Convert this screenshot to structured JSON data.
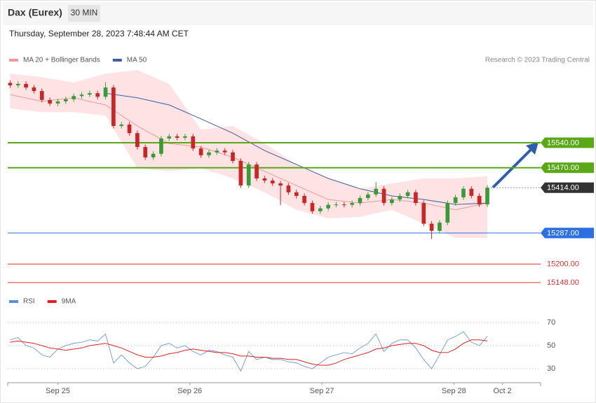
{
  "header": {
    "instrument": "Dax (Eurex)",
    "timeframe": "30 MIN",
    "timestamp": "Thursday, September 28, 2023 7:48:44 AM CET"
  },
  "chart_data": [
    {
      "type": "candlestick",
      "x": [
        0,
        1,
        2,
        3,
        4,
        5,
        6,
        7,
        8,
        9,
        10,
        11,
        12,
        13,
        14,
        15,
        16,
        17,
        18,
        19,
        20,
        21,
        22,
        23,
        24,
        25,
        26,
        27,
        28,
        29,
        30,
        31,
        32,
        33,
        34,
        35,
        36,
        37,
        38,
        39,
        40,
        41,
        42,
        43,
        44,
        45,
        46,
        47,
        48,
        49,
        50,
        51,
        52,
        53,
        54,
        55,
        56,
        57,
        58,
        59,
        60
      ],
      "open": [
        15708,
        15701,
        15705,
        15695,
        15685,
        15660,
        15650,
        15656,
        15662,
        15671,
        15675,
        15679,
        15669,
        15695,
        15587,
        15591,
        15567,
        15528,
        15499,
        15509,
        15552,
        15558,
        15554,
        15558,
        15524,
        15505,
        15513,
        15518,
        15513,
        15489,
        15420,
        15479,
        15440,
        15434,
        15426,
        15420,
        15401,
        15391,
        15371,
        15348,
        15356,
        15366,
        15367,
        15366,
        15371,
        15385,
        15395,
        15411,
        15371,
        15381,
        15391,
        15401,
        15371,
        15313,
        15293,
        15316,
        15371,
        15387,
        15411,
        15391,
        15367
      ],
      "high": [
        15715,
        15712,
        15712,
        15702,
        15692,
        15667,
        15663,
        15669,
        15678,
        15682,
        15686,
        15686,
        15710,
        15702,
        15598,
        15598,
        15574,
        15535,
        15516,
        15559,
        15565,
        15565,
        15565,
        15565,
        15531,
        15520,
        15525,
        15525,
        15520,
        15496,
        15486,
        15486,
        15447,
        15441,
        15433,
        15427,
        15408,
        15398,
        15378,
        15363,
        15373,
        15374,
        15374,
        15378,
        15392,
        15402,
        15430,
        15418,
        15388,
        15398,
        15408,
        15408,
        15378,
        15320,
        15323,
        15378,
        15394,
        15418,
        15418,
        15398,
        15421
      ],
      "low": [
        15694,
        15694,
        15688,
        15678,
        15653,
        15643,
        15643,
        15649,
        15655,
        15664,
        15668,
        15662,
        15662,
        15580,
        15580,
        15560,
        15521,
        15492,
        15492,
        15502,
        15545,
        15547,
        15547,
        15517,
        15498,
        15498,
        15506,
        15506,
        15482,
        15413,
        15413,
        15433,
        15427,
        15419,
        15365,
        15394,
        15384,
        15364,
        15341,
        15341,
        15349,
        15359,
        15359,
        15359,
        15364,
        15378,
        15388,
        15364,
        15364,
        15374,
        15384,
        15364,
        15306,
        15270,
        15286,
        15309,
        15364,
        15380,
        15384,
        15360,
        15360
      ],
      "close": [
        15701,
        15705,
        15695,
        15685,
        15660,
        15650,
        15656,
        15662,
        15671,
        15675,
        15679,
        15669,
        15695,
        15587,
        15591,
        15567,
        15528,
        15499,
        15509,
        15552,
        15558,
        15554,
        15558,
        15524,
        15505,
        15513,
        15518,
        15513,
        15489,
        15420,
        15479,
        15440,
        15434,
        15426,
        15420,
        15401,
        15391,
        15371,
        15348,
        15356,
        15366,
        15367,
        15366,
        15371,
        15385,
        15395,
        15411,
        15371,
        15381,
        15391,
        15401,
        15371,
        15313,
        15293,
        15316,
        15371,
        15387,
        15411,
        15391,
        15367,
        15414
      ],
      "up_color": "#3a9a3a",
      "down_color": "#c62828",
      "series": [
        {
          "name": "MA 20 + Bollinger Bands",
          "color": "#f29a9a",
          "band_color": "#fde3e3",
          "x": [
            0,
            4,
            8,
            12,
            16,
            20,
            24,
            28,
            32,
            36,
            40,
            44,
            48,
            52,
            56,
            60
          ],
          "values": [
            15675,
            15656,
            15666,
            15646,
            15587,
            15538,
            15528,
            15499,
            15460,
            15420,
            15381,
            15371,
            15381,
            15371,
            15352,
            15371
          ],
          "upper": [
            15734,
            15724,
            15709,
            15734,
            15744,
            15705,
            15577,
            15587,
            15538,
            15479,
            15440,
            15411,
            15426,
            15440,
            15440,
            15446
          ],
          "lower": [
            15636,
            15626,
            15626,
            15616,
            15469,
            15460,
            15469,
            15440,
            15401,
            15352,
            15328,
            15332,
            15352,
            15313,
            15273,
            15273
          ]
        },
        {
          "name": "MA 50",
          "color": "#3f5f9f",
          "x": [
            0,
            4,
            8,
            12,
            16,
            20,
            24,
            28,
            32,
            36,
            40,
            44,
            48,
            52,
            56,
            60
          ],
          "values": [
            null,
            null,
            null,
            15679,
            15666,
            15646,
            15607,
            15567,
            15518,
            15479,
            15440,
            15411,
            15391,
            15381,
            15367,
            15371
          ]
        }
      ],
      "levels": [
        {
          "value": 15540,
          "label": "15540.00",
          "color": "#5aa816",
          "line": "solid",
          "style": "box"
        },
        {
          "value": 15470,
          "label": "15470.00",
          "color": "#5aa816",
          "line": "solid",
          "style": "box"
        },
        {
          "value": 15414,
          "label": "15414.00",
          "color": "#333333",
          "line": "dotted",
          "style": "box"
        },
        {
          "value": 15287,
          "label": "15287.00",
          "color": "#2c6fe0",
          "line": "solid",
          "style": "box"
        },
        {
          "value": 15200,
          "label": "15200.00",
          "color": "#e03030",
          "line": "thin",
          "style": "text"
        },
        {
          "value": 15148,
          "label": "15148.00",
          "color": "#e03030",
          "line": "thin",
          "style": "text"
        }
      ],
      "note": "Research © 2023 Trading Central",
      "xlim": [
        -0.3,
        66.7
      ],
      "ylim": [
        15130,
        15750
      ]
    },
    {
      "type": "line",
      "x": [
        0,
        1,
        2,
        3,
        4,
        5,
        6,
        7,
        8,
        9,
        10,
        11,
        12,
        13,
        14,
        15,
        16,
        17,
        18,
        19,
        20,
        21,
        22,
        23,
        24,
        25,
        26,
        27,
        28,
        29,
        30,
        31,
        32,
        33,
        34,
        35,
        36,
        37,
        38,
        39,
        40,
        41,
        42,
        43,
        44,
        45,
        46,
        47,
        48,
        49,
        50,
        51,
        52,
        53,
        54,
        55,
        56,
        57,
        58,
        59,
        60
      ],
      "series": [
        {
          "name": "RSI",
          "color": "#5b8ddb",
          "values": [
            55,
            57,
            50,
            48,
            42,
            40,
            47,
            50,
            52,
            53,
            55,
            54,
            60,
            35,
            42,
            35,
            30,
            32,
            40,
            50,
            52,
            48,
            50,
            45,
            42,
            46,
            45,
            42,
            40,
            28,
            45,
            38,
            40,
            38,
            38,
            36,
            35,
            32,
            30,
            35,
            40,
            42,
            44,
            43,
            48,
            52,
            60,
            45,
            52,
            55,
            55,
            48,
            38,
            30,
            42,
            55,
            58,
            62,
            53,
            50,
            58
          ]
        },
        {
          "name": "9MA",
          "color": "#e02020",
          "values": [
            53,
            54,
            53,
            52,
            50,
            48,
            47,
            46,
            47,
            48,
            50,
            51,
            52,
            50,
            48,
            45,
            42,
            40,
            40,
            41,
            43,
            44,
            46,
            47,
            46,
            45,
            44,
            44,
            43,
            41,
            41,
            40,
            40,
            39,
            39,
            38,
            38,
            36,
            34,
            33,
            33,
            35,
            38,
            40,
            42,
            44,
            47,
            48,
            50,
            51,
            52,
            52,
            50,
            46,
            44,
            44,
            47,
            52,
            55,
            55,
            54
          ]
        }
      ],
      "xlim": [
        -0.3,
        66.7
      ],
      "ylim": [
        20,
        80
      ],
      "yticks": [
        30,
        50,
        70
      ],
      "xticks": [
        {
          "value": 6,
          "label": "Sep 25"
        },
        {
          "value": 22.6,
          "label": "Sep 26"
        },
        {
          "value": 39.2,
          "label": "Sep 27"
        },
        {
          "value": 55.8,
          "label": "Sep 28"
        },
        {
          "value": 61.9,
          "label": "Oct 2"
        }
      ]
    }
  ]
}
